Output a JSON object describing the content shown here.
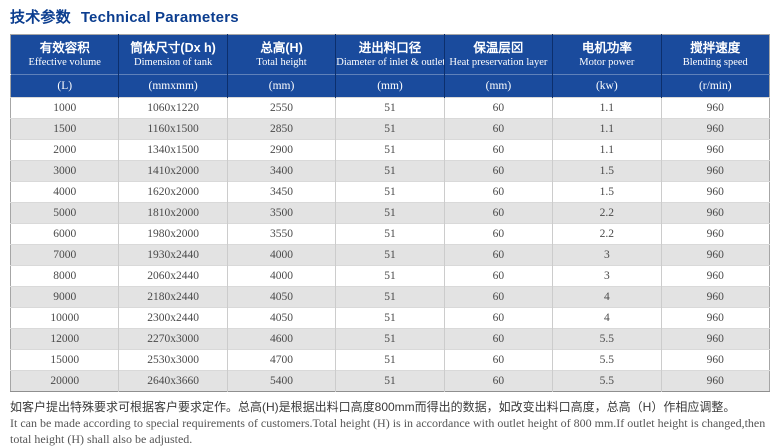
{
  "title": {
    "zh": "技术参数",
    "en": "Technical Parameters"
  },
  "colors": {
    "header_bg": "#1a4b9d",
    "title_text": "#0b3d8f",
    "alt_row_bg": "#e3e3e3"
  },
  "table": {
    "columns": [
      {
        "zh": "有效容积",
        "en": "Effective volume",
        "unit": "(L)"
      },
      {
        "zh": "筒体尺寸(Dx h)",
        "en": "Dimension of tank",
        "unit": "(mmxmm)"
      },
      {
        "zh": "总高(H)",
        "en": "Total height",
        "unit": "(mm)"
      },
      {
        "zh": "进出料口径",
        "en": "Diameter of inlet & outlet",
        "unit": "(mm)"
      },
      {
        "zh": "保温层⊠",
        "en": "Heat preservation layer",
        "unit": "(mm)"
      },
      {
        "zh": "电机功率",
        "en": "Motor power",
        "unit": "(kw)"
      },
      {
        "zh": "搅拌速度",
        "en": "Blending speed",
        "unit": "(r/min)"
      }
    ],
    "rows": [
      [
        "1000",
        "1060x1220",
        "2550",
        "51",
        "60",
        "1.1",
        "960"
      ],
      [
        "1500",
        "1160x1500",
        "2850",
        "51",
        "60",
        "1.1",
        "960"
      ],
      [
        "2000",
        "1340x1500",
        "2900",
        "51",
        "60",
        "1.1",
        "960"
      ],
      [
        "3000",
        "1410x2000",
        "3400",
        "51",
        "60",
        "1.5",
        "960"
      ],
      [
        "4000",
        "1620x2000",
        "3450",
        "51",
        "60",
        "1.5",
        "960"
      ],
      [
        "5000",
        "1810x2000",
        "3500",
        "51",
        "60",
        "2.2",
        "960"
      ],
      [
        "6000",
        "1980x2000",
        "3550",
        "51",
        "60",
        "2.2",
        "960"
      ],
      [
        "7000",
        "1930x2440",
        "4000",
        "51",
        "60",
        "3",
        "960"
      ],
      [
        "8000",
        "2060x2440",
        "4000",
        "51",
        "60",
        "3",
        "960"
      ],
      [
        "9000",
        "2180x2440",
        "4050",
        "51",
        "60",
        "4",
        "960"
      ],
      [
        "10000",
        "2300x2440",
        "4050",
        "51",
        "60",
        "4",
        "960"
      ],
      [
        "12000",
        "2270x3000",
        "4600",
        "51",
        "60",
        "5.5",
        "960"
      ],
      [
        "15000",
        "2530x3000",
        "4700",
        "51",
        "60",
        "5.5",
        "960"
      ],
      [
        "20000",
        "2640x3660",
        "5400",
        "51",
        "60",
        "5.5",
        "960"
      ]
    ]
  },
  "footnote": {
    "zh": "如客户提出特殊要求可根据客户要求定作。总高(H)是根据出料口高度800mm而得出的数据，如改变出料口高度，总高（H）作相应调整。",
    "en_line1": "It can be made according to special requirements of customers.Total height (H) is in accordance with outlet height of 800 mm.If outlet height is changed,then",
    "en_line2": "total height (H) shall also be adjusted."
  }
}
